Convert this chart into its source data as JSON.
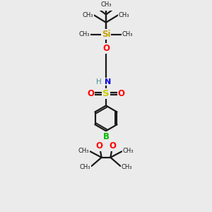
{
  "background_color": "#ebebeb",
  "bond_color": "#1a1a1a",
  "atom_colors": {
    "Si": "#c8a000",
    "O": "#ff0000",
    "N": "#0000dd",
    "H_N": "#4a9090",
    "S": "#cccc00",
    "B": "#00bb00",
    "C": "#1a1a1a"
  },
  "figsize": [
    3.0,
    3.0
  ],
  "dpi": 100,
  "xlim": [
    0,
    10
  ],
  "ylim": [
    0,
    15
  ]
}
